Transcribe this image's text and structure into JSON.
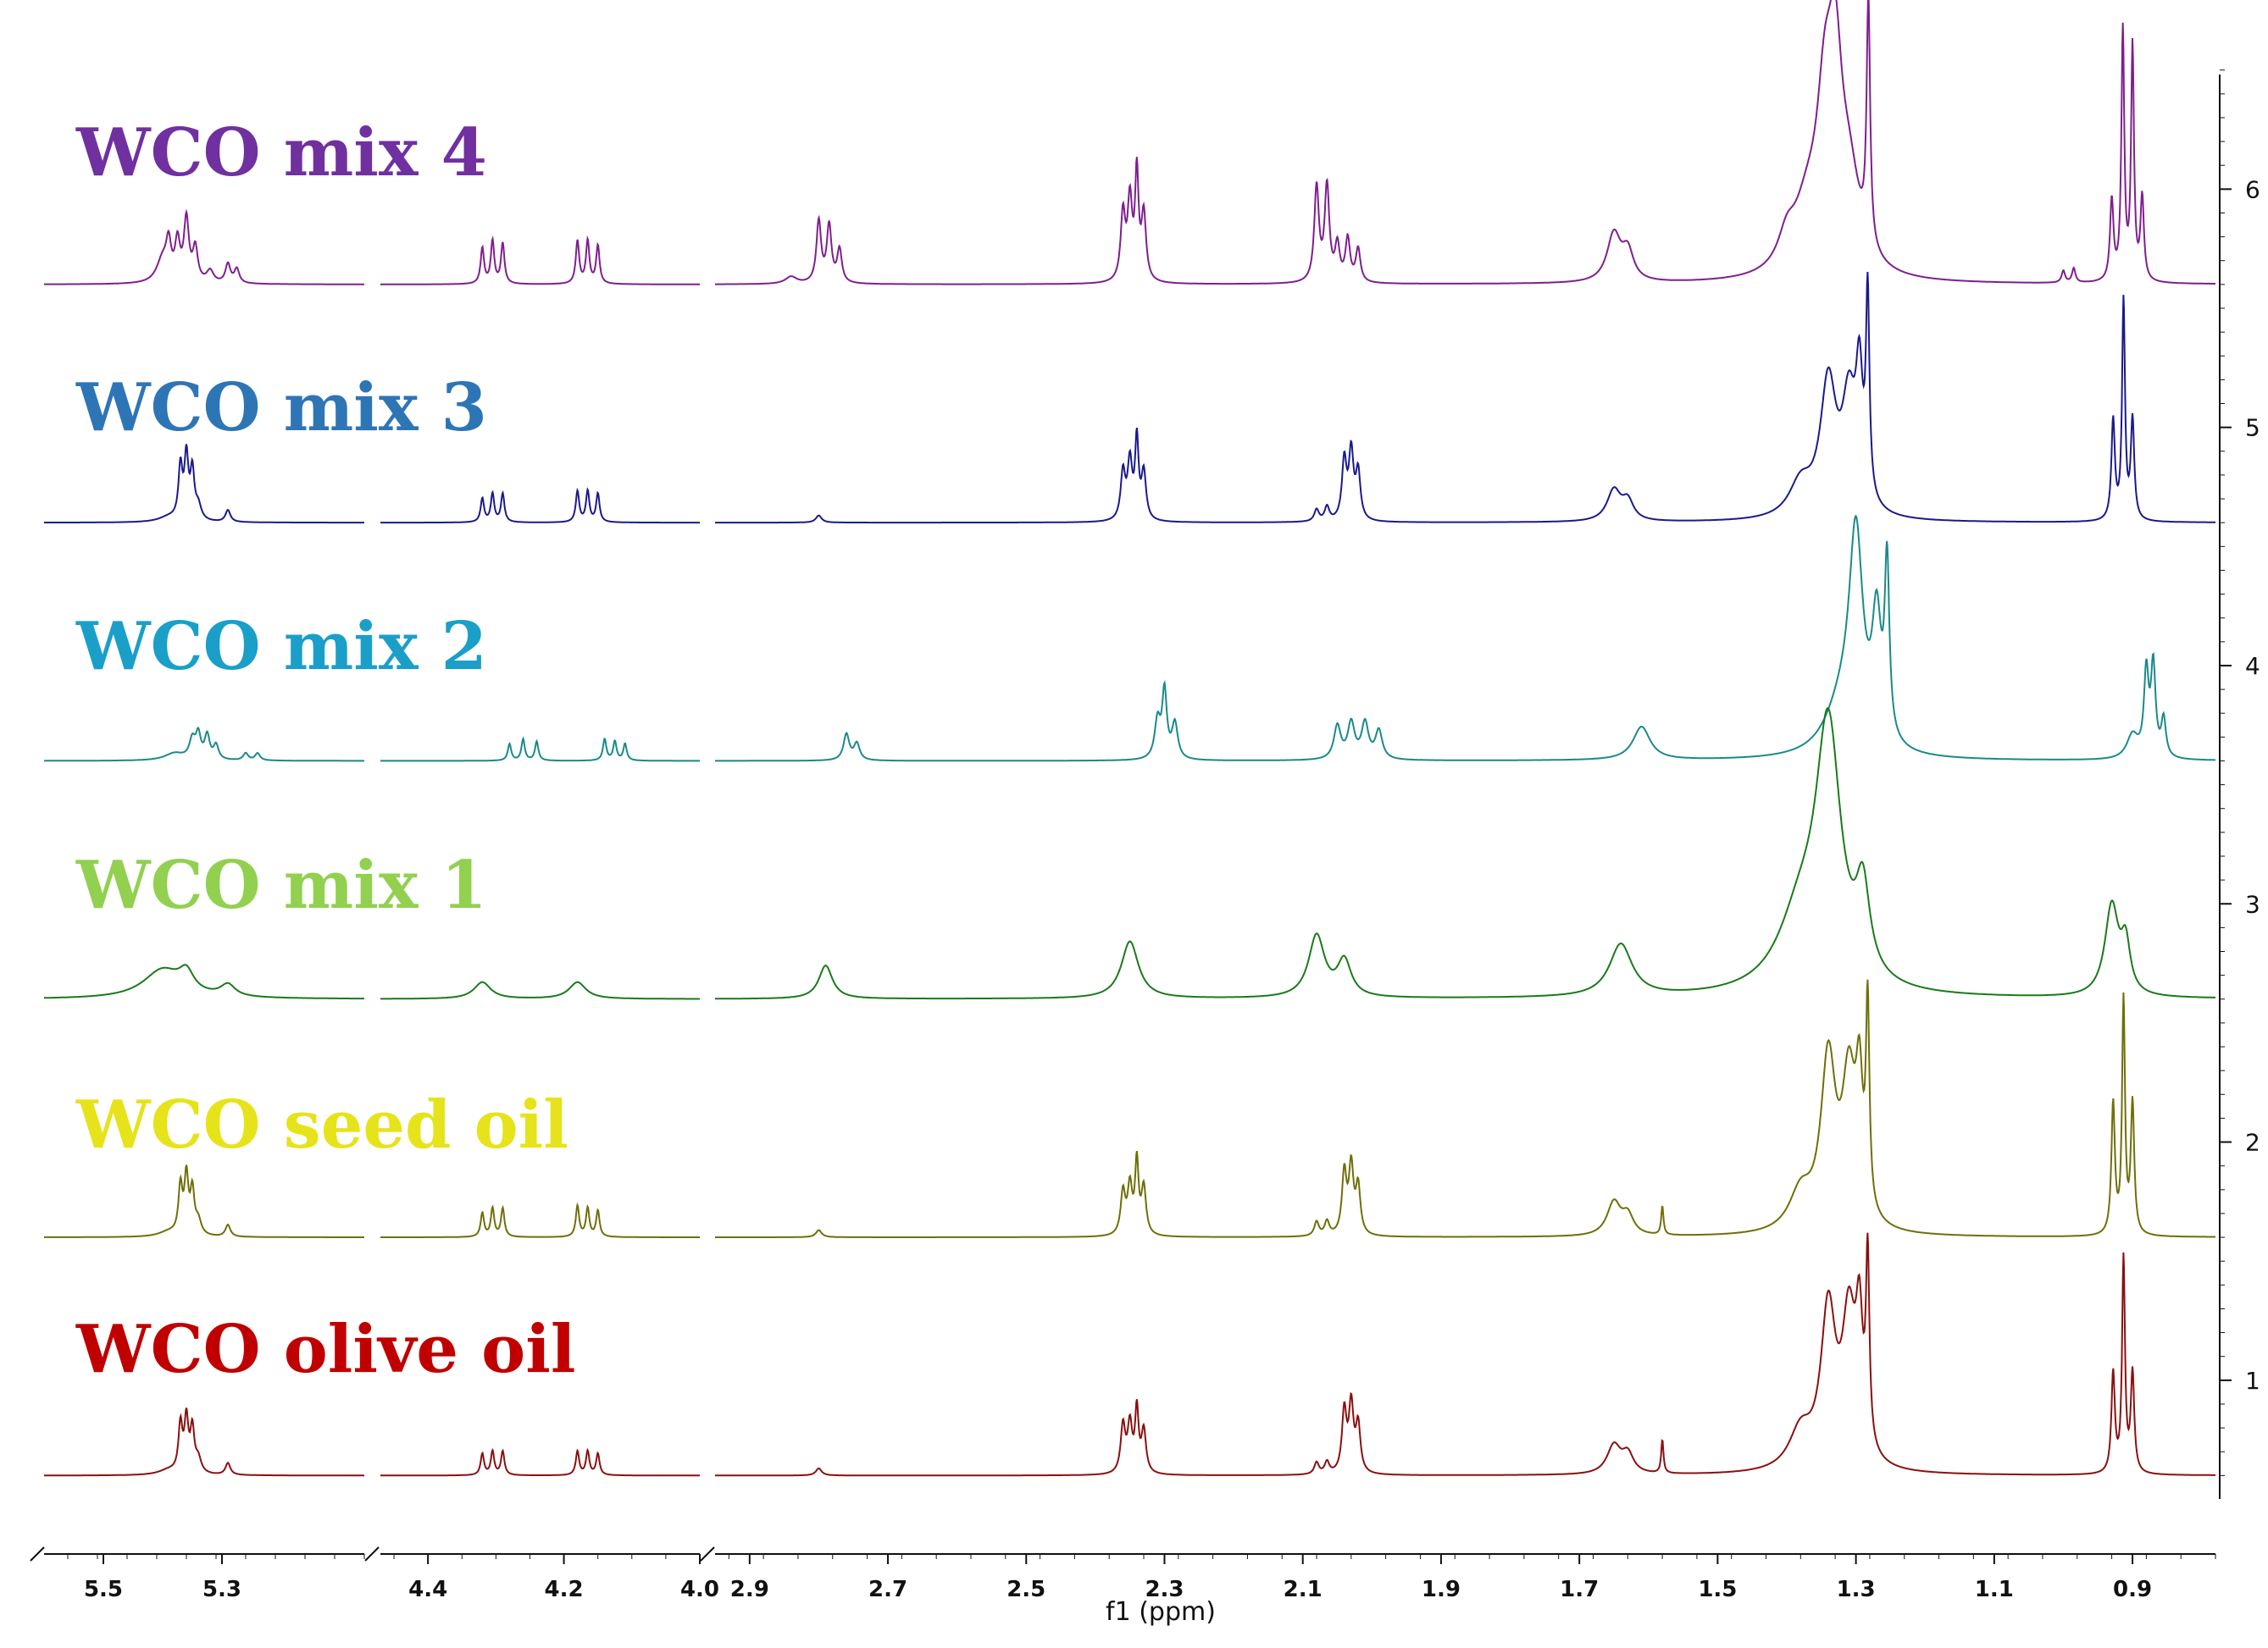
{
  "chart_data": {
    "type": "line",
    "title": "",
    "xlabel": "f1 (ppm)",
    "ylabel": "",
    "x_axis_reversed": true,
    "x_segments": [
      {
        "range": [
          5.6,
          5.06
        ],
        "ticks": [
          "5.5",
          "5.3"
        ],
        "tick_values": [
          5.5,
          5.3
        ]
      },
      {
        "range": [
          4.47,
          4.0
        ],
        "ticks": [
          "4.4",
          "4.2",
          "4.0"
        ],
        "tick_values": [
          4.4,
          4.2,
          4.0
        ]
      },
      {
        "range": [
          2.95,
          0.78
        ],
        "ticks": [
          "2.9",
          "2.7",
          "2.5",
          "2.3",
          "2.1",
          "1.9",
          "1.7",
          "1.5",
          "1.3",
          "1.1",
          "0.9"
        ],
        "tick_values": [
          2.9,
          2.7,
          2.5,
          2.3,
          2.1,
          1.9,
          1.7,
          1.5,
          1.3,
          1.1,
          0.9
        ]
      }
    ],
    "y_axis": {
      "ylim": [
        0.5,
        6.5
      ],
      "ticks": [
        "1",
        "2",
        "3",
        "4",
        "5",
        "6"
      ],
      "tick_values": [
        1,
        2,
        3,
        4,
        5,
        6
      ]
    },
    "series": [
      {
        "name": "WCO mix 4",
        "color": "#7f1f8f",
        "label_color": "#7030a0",
        "baseline": 5.6,
        "peaks": [
          [
            5.4,
            0.1,
            0.012
          ],
          [
            5.39,
            0.14,
            0.005
          ],
          [
            5.375,
            0.16,
            0.005
          ],
          [
            5.36,
            0.26,
            0.005
          ],
          [
            5.345,
            0.14,
            0.005
          ],
          [
            5.32,
            0.05,
            0.007
          ],
          [
            5.29,
            0.08,
            0.005
          ],
          [
            5.275,
            0.06,
            0.005
          ],
          [
            4.32,
            0.15,
            0.003
          ],
          [
            4.305,
            0.18,
            0.003
          ],
          [
            4.29,
            0.17,
            0.003
          ],
          [
            4.18,
            0.18,
            0.003
          ],
          [
            4.165,
            0.18,
            0.003
          ],
          [
            4.15,
            0.16,
            0.003
          ],
          [
            2.84,
            0.03,
            0.01
          ],
          [
            2.8,
            0.26,
            0.004
          ],
          [
            2.785,
            0.24,
            0.004
          ],
          [
            2.77,
            0.14,
            0.004
          ],
          [
            2.36,
            0.28,
            0.004
          ],
          [
            2.35,
            0.33,
            0.004
          ],
          [
            2.34,
            0.44,
            0.003
          ],
          [
            2.33,
            0.28,
            0.004
          ],
          [
            2.08,
            0.4,
            0.004
          ],
          [
            2.065,
            0.4,
            0.004
          ],
          [
            2.05,
            0.15,
            0.004
          ],
          [
            2.035,
            0.18,
            0.004
          ],
          [
            2.02,
            0.14,
            0.004
          ],
          [
            1.65,
            0.2,
            0.012
          ],
          [
            1.63,
            0.12,
            0.01
          ],
          [
            1.4,
            0.12,
            0.015
          ],
          [
            1.37,
            0.25,
            0.025
          ],
          [
            1.345,
            0.58,
            0.014
          ],
          [
            1.33,
            0.7,
            0.012
          ],
          [
            1.31,
            0.35,
            0.02
          ],
          [
            1.282,
            1.02,
            0.003
          ],
          [
            1.0,
            0.05,
            0.003
          ],
          [
            0.985,
            0.06,
            0.003
          ],
          [
            0.93,
            0.34,
            0.003
          ],
          [
            0.914,
            1.05,
            0.0025
          ],
          [
            0.9,
            0.98,
            0.0025
          ],
          [
            0.886,
            0.35,
            0.003
          ]
        ]
      },
      {
        "name": "WCO mix 3",
        "color": "#1a1a8c",
        "label_color": "#2e75b6",
        "baseline": 4.6,
        "peaks": [
          [
            5.39,
            0.02,
            0.02
          ],
          [
            5.37,
            0.22,
            0.004
          ],
          [
            5.36,
            0.26,
            0.004
          ],
          [
            5.35,
            0.2,
            0.004
          ],
          [
            5.34,
            0.06,
            0.006
          ],
          [
            5.29,
            0.05,
            0.005
          ],
          [
            4.32,
            0.1,
            0.003
          ],
          [
            4.305,
            0.12,
            0.003
          ],
          [
            4.29,
            0.12,
            0.003
          ],
          [
            4.18,
            0.13,
            0.003
          ],
          [
            4.165,
            0.13,
            0.003
          ],
          [
            4.15,
            0.12,
            0.003
          ],
          [
            2.8,
            0.03,
            0.005
          ],
          [
            2.36,
            0.2,
            0.004
          ],
          [
            2.35,
            0.24,
            0.004
          ],
          [
            2.34,
            0.33,
            0.003
          ],
          [
            2.33,
            0.2,
            0.004
          ],
          [
            2.08,
            0.05,
            0.004
          ],
          [
            2.065,
            0.06,
            0.004
          ],
          [
            2.04,
            0.25,
            0.004
          ],
          [
            2.03,
            0.28,
            0.004
          ],
          [
            2.02,
            0.2,
            0.004
          ],
          [
            1.65,
            0.13,
            0.012
          ],
          [
            1.63,
            0.08,
            0.01
          ],
          [
            1.38,
            0.14,
            0.02
          ],
          [
            1.34,
            0.55,
            0.014
          ],
          [
            1.31,
            0.45,
            0.012
          ],
          [
            1.283,
            0.84,
            0.003
          ],
          [
            1.295,
            0.5,
            0.006
          ],
          [
            0.928,
            0.42,
            0.003
          ],
          [
            0.913,
            0.92,
            0.0025
          ],
          [
            0.9,
            0.42,
            0.003
          ]
        ]
      },
      {
        "name": "WCO mix 2",
        "color": "#1a8a8a",
        "label_color": "#1a9fc9",
        "baseline": 3.6,
        "peaks": [
          [
            5.38,
            0.03,
            0.02
          ],
          [
            5.35,
            0.08,
            0.006
          ],
          [
            5.34,
            0.1,
            0.005
          ],
          [
            5.325,
            0.1,
            0.005
          ],
          [
            5.31,
            0.06,
            0.005
          ],
          [
            5.26,
            0.03,
            0.005
          ],
          [
            5.24,
            0.03,
            0.005
          ],
          [
            4.28,
            0.07,
            0.003
          ],
          [
            4.26,
            0.09,
            0.003
          ],
          [
            4.24,
            0.08,
            0.003
          ],
          [
            4.14,
            0.09,
            0.003
          ],
          [
            4.125,
            0.08,
            0.003
          ],
          [
            4.11,
            0.07,
            0.003
          ],
          [
            2.76,
            0.11,
            0.005
          ],
          [
            2.745,
            0.07,
            0.005
          ],
          [
            2.31,
            0.16,
            0.005
          ],
          [
            2.3,
            0.28,
            0.004
          ],
          [
            2.285,
            0.15,
            0.005
          ],
          [
            2.05,
            0.14,
            0.006
          ],
          [
            2.03,
            0.15,
            0.006
          ],
          [
            2.01,
            0.15,
            0.006
          ],
          [
            1.99,
            0.12,
            0.006
          ],
          [
            1.61,
            0.14,
            0.015
          ],
          [
            1.3,
            0.85,
            0.012
          ],
          [
            1.27,
            0.5,
            0.008
          ],
          [
            1.255,
            0.72,
            0.004
          ],
          [
            1.32,
            0.2,
            0.03
          ],
          [
            0.88,
            0.35,
            0.004
          ],
          [
            0.87,
            0.38,
            0.004
          ],
          [
            0.855,
            0.16,
            0.004
          ],
          [
            0.9,
            0.1,
            0.01
          ]
        ]
      },
      {
        "name": "WCO mix 1",
        "color": "#1a7a1a",
        "label_color": "#92d050",
        "baseline": 2.6,
        "peaks": [
          [
            5.4,
            0.12,
            0.04
          ],
          [
            5.36,
            0.08,
            0.015
          ],
          [
            5.29,
            0.05,
            0.015
          ],
          [
            4.32,
            0.07,
            0.015
          ],
          [
            4.18,
            0.07,
            0.015
          ],
          [
            2.79,
            0.14,
            0.012
          ],
          [
            2.35,
            0.24,
            0.015
          ],
          [
            2.08,
            0.26,
            0.014
          ],
          [
            2.04,
            0.15,
            0.012
          ],
          [
            1.64,
            0.22,
            0.02
          ],
          [
            1.34,
            1.05,
            0.022
          ],
          [
            1.38,
            0.3,
            0.04
          ],
          [
            1.29,
            0.35,
            0.012
          ],
          [
            0.93,
            0.38,
            0.012
          ],
          [
            0.91,
            0.2,
            0.008
          ]
        ]
      },
      {
        "name": "WCO seed oil",
        "color": "#6f6f0a",
        "label_color": "#e6e31a",
        "baseline": 1.6,
        "peaks": [
          [
            5.39,
            0.02,
            0.02
          ],
          [
            5.37,
            0.2,
            0.004
          ],
          [
            5.36,
            0.24,
            0.004
          ],
          [
            5.35,
            0.18,
            0.004
          ],
          [
            5.34,
            0.06,
            0.006
          ],
          [
            5.29,
            0.05,
            0.005
          ],
          [
            4.32,
            0.1,
            0.003
          ],
          [
            4.305,
            0.12,
            0.003
          ],
          [
            4.29,
            0.12,
            0.003
          ],
          [
            4.18,
            0.13,
            0.003
          ],
          [
            4.165,
            0.12,
            0.003
          ],
          [
            4.15,
            0.11,
            0.003
          ],
          [
            2.8,
            0.03,
            0.005
          ],
          [
            2.36,
            0.18,
            0.004
          ],
          [
            2.35,
            0.2,
            0.004
          ],
          [
            2.34,
            0.3,
            0.003
          ],
          [
            2.33,
            0.2,
            0.004
          ],
          [
            2.08,
            0.06,
            0.004
          ],
          [
            2.065,
            0.06,
            0.004
          ],
          [
            2.04,
            0.26,
            0.004
          ],
          [
            2.03,
            0.28,
            0.004
          ],
          [
            2.02,
            0.2,
            0.004
          ],
          [
            1.65,
            0.14,
            0.012
          ],
          [
            1.63,
            0.08,
            0.01
          ],
          [
            1.58,
            0.12,
            0.002
          ],
          [
            1.38,
            0.16,
            0.02
          ],
          [
            1.34,
            0.7,
            0.013
          ],
          [
            1.31,
            0.6,
            0.012
          ],
          [
            1.283,
            0.84,
            0.003
          ],
          [
            1.295,
            0.5,
            0.006
          ],
          [
            0.928,
            0.55,
            0.003
          ],
          [
            0.913,
            0.98,
            0.0025
          ],
          [
            0.9,
            0.55,
            0.003
          ]
        ]
      },
      {
        "name": "WCO olive oil",
        "color": "#8a1010",
        "label_color": "#c00000",
        "baseline": 0.6,
        "peaks": [
          [
            5.39,
            0.02,
            0.02
          ],
          [
            5.37,
            0.2,
            0.004
          ],
          [
            5.36,
            0.22,
            0.004
          ],
          [
            5.35,
            0.18,
            0.004
          ],
          [
            5.34,
            0.06,
            0.006
          ],
          [
            5.29,
            0.05,
            0.005
          ],
          [
            4.32,
            0.09,
            0.003
          ],
          [
            4.305,
            0.1,
            0.003
          ],
          [
            4.29,
            0.1,
            0.003
          ],
          [
            4.18,
            0.1,
            0.003
          ],
          [
            4.165,
            0.1,
            0.003
          ],
          [
            4.15,
            0.09,
            0.003
          ],
          [
            2.8,
            0.03,
            0.005
          ],
          [
            2.36,
            0.2,
            0.004
          ],
          [
            2.35,
            0.2,
            0.004
          ],
          [
            2.34,
            0.26,
            0.003
          ],
          [
            2.33,
            0.18,
            0.004
          ],
          [
            2.08,
            0.05,
            0.004
          ],
          [
            2.065,
            0.05,
            0.004
          ],
          [
            2.04,
            0.26,
            0.004
          ],
          [
            2.03,
            0.28,
            0.004
          ],
          [
            2.02,
            0.2,
            0.004
          ],
          [
            1.65,
            0.12,
            0.012
          ],
          [
            1.63,
            0.08,
            0.01
          ],
          [
            1.58,
            0.14,
            0.002
          ],
          [
            1.38,
            0.16,
            0.02
          ],
          [
            1.34,
            0.65,
            0.013
          ],
          [
            1.31,
            0.6,
            0.012
          ],
          [
            1.283,
            0.78,
            0.003
          ],
          [
            1.295,
            0.5,
            0.006
          ],
          [
            0.928,
            0.42,
            0.003
          ],
          [
            0.913,
            0.9,
            0.0025
          ],
          [
            0.9,
            0.42,
            0.003
          ]
        ]
      }
    ]
  }
}
